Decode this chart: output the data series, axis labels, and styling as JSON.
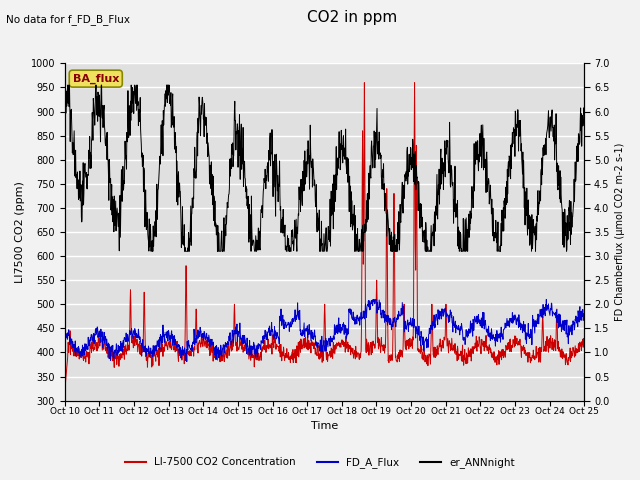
{
  "title": "CO2 in ppm",
  "top_left_text": "No data for f_FD_B_Flux",
  "legend_box_text": "BA_flux",
  "xlabel": "Time",
  "ylabel_left": "LI7500 CO2 (ppm)",
  "ylabel_right": "FD Chamberflux (μmol CO2 m-2 s-1)",
  "ylim_left": [
    300,
    1000
  ],
  "ylim_right": [
    0.0,
    7.0
  ],
  "yticks_left": [
    300,
    350,
    400,
    450,
    500,
    550,
    600,
    650,
    700,
    750,
    800,
    850,
    900,
    950,
    1000
  ],
  "yticks_right": [
    0.0,
    0.5,
    1.0,
    1.5,
    2.0,
    2.5,
    3.0,
    3.5,
    4.0,
    4.5,
    5.0,
    5.5,
    6.0,
    6.5,
    7.0
  ],
  "xtick_labels": [
    "Oct 10",
    "Oct 11",
    "Oct 12",
    "Oct 13",
    "Oct 14",
    "Oct 15",
    "Oct 16",
    "Oct 17",
    "Oct 18",
    "Oct 19",
    "Oct 20",
    "Oct 21",
    "Oct 22",
    "Oct 23",
    "Oct 24",
    "Oct 25"
  ],
  "color_red": "#cc0000",
  "color_blue": "#0000cc",
  "color_black": "#000000",
  "legend_labels": [
    "LI-7500 CO2 Concentration",
    "FD_A_Flux",
    "er_ANNnight"
  ],
  "bg_color": "#e0e0e0",
  "grid_color": "#ffffff",
  "legend_box_bg": "#f0e060",
  "legend_box_edge": "#888800",
  "figsize": [
    6.4,
    4.8
  ],
  "dpi": 100,
  "n_days": 15,
  "pts_per_day": 96
}
